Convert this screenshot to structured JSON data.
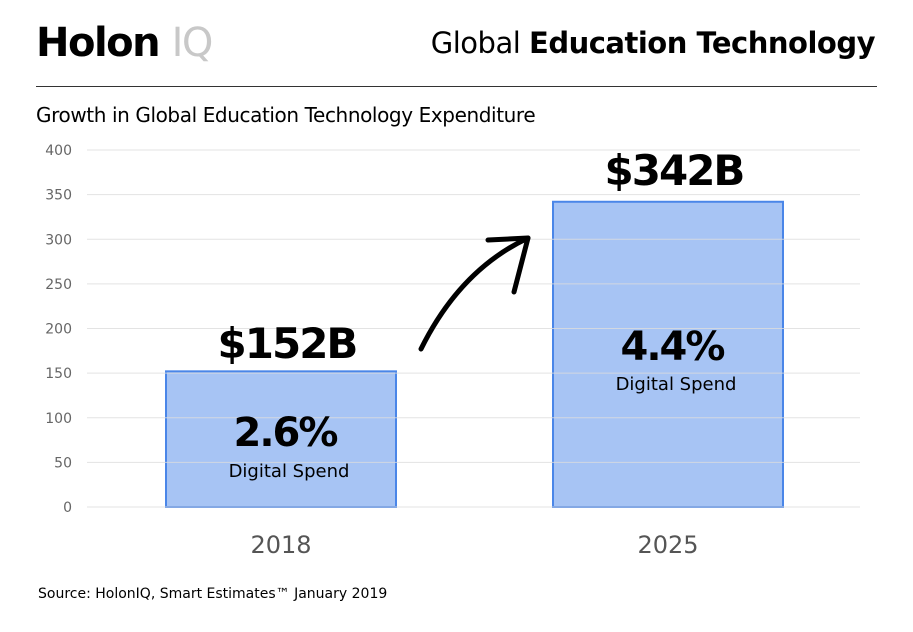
{
  "header": {
    "logo_main": "Holon",
    "logo_accent": "IQ",
    "title_light": "Global",
    "title_bold": "Education Technology"
  },
  "subtitle": "Growth in Global Education Technology Expenditure",
  "source": "Source: HolonIQ, Smart Estimates™ January 2019",
  "colors": {
    "bar_fill": "#a7c4f4",
    "bar_border": "#4a86e8",
    "grid": "#dddddd"
  },
  "chart_data": {
    "type": "bar",
    "categories": [
      "2018",
      "2025"
    ],
    "values": [
      152,
      342
    ],
    "ylim": [
      0,
      400
    ],
    "yticks": [
      0,
      50,
      100,
      150,
      200,
      250,
      300,
      350,
      400
    ],
    "grid": true,
    "value_labels": [
      "$152B",
      "$342B"
    ],
    "inner_labels": [
      "2.6%",
      "4.4%"
    ],
    "inner_sublabels": [
      "Digital Spend",
      "Digital Spend"
    ],
    "annotation": "arrow from 2018 to 2025"
  }
}
